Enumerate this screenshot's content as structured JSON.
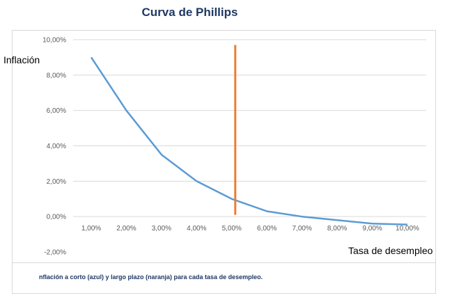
{
  "chart_data": {
    "type": "line",
    "title": "Curva de Phillips",
    "xlabel": "Tasa de desempleo",
    "ylabel": "Inflación",
    "caption": "nflación a corto (azul) y largo plazo (naranja) para cada tasa de desempleo.",
    "x": [
      1,
      2,
      3,
      4,
      5,
      6,
      7,
      8,
      9,
      10
    ],
    "x_tick_labels": [
      "1,00%",
      "2,00%",
      "3,00%",
      "4,00%",
      "5,00%",
      "6,00%",
      "7,00%",
      "8,00%",
      "9,00%",
      "10,00%"
    ],
    "y_tick_labels": [
      "10,00%",
      "8,00%",
      "6,00%",
      "4,00%",
      "2,00%",
      "0,00%",
      "-2,00%"
    ],
    "y_ticks": [
      10,
      8,
      6,
      4,
      2,
      0,
      -2
    ],
    "ylim": [
      -2,
      10
    ],
    "xlim": [
      1,
      10
    ],
    "grid": true,
    "series": [
      {
        "color": "#5b9bd5",
        "x": [
          1,
          2,
          3,
          4,
          5,
          6,
          7,
          8,
          9,
          10
        ],
        "values": [
          9.0,
          6.0,
          3.5,
          2.0,
          1.0,
          0.3,
          0.0,
          -0.2,
          -0.4,
          -0.45
        ]
      },
      {
        "color": "#ed7d31",
        "x": [
          5.1,
          5.1
        ],
        "values": [
          0.1,
          9.7
        ]
      }
    ]
  }
}
